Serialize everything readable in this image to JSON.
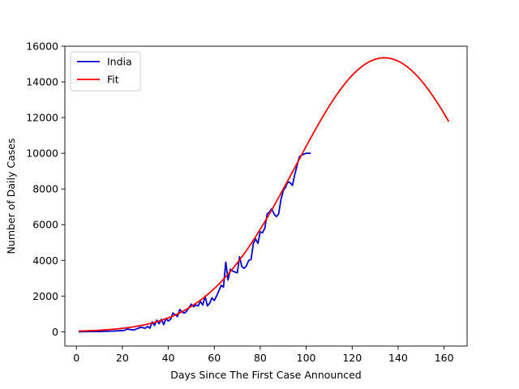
{
  "chart_data": {
    "type": "line",
    "title": "",
    "xlabel": "Days Since The First Case Announced",
    "ylabel": "Number of Daily Cases",
    "xlim": [
      -5,
      170
    ],
    "ylim": [
      -800,
      16000
    ],
    "xticks": [
      0,
      20,
      40,
      60,
      80,
      100,
      120,
      140,
      160
    ],
    "yticks": [
      0,
      2000,
      4000,
      6000,
      8000,
      10000,
      12000,
      14000,
      16000
    ],
    "grid": false,
    "legend_position": "top-left",
    "series": [
      {
        "name": "India",
        "color": "#0000cc",
        "x": [
          1,
          4,
          7,
          10,
          13,
          16,
          19,
          21,
          22,
          25,
          28,
          30,
          31,
          32,
          33,
          34,
          35,
          36,
          37,
          38,
          39,
          40,
          41,
          42,
          43,
          44,
          45,
          46,
          47,
          48,
          50,
          51,
          52,
          53,
          54,
          55,
          56,
          57,
          58,
          59,
          60,
          61,
          62,
          63,
          64,
          65,
          66,
          67,
          68,
          69,
          70,
          71,
          72,
          73,
          74,
          75,
          76,
          77,
          78,
          79,
          80,
          81,
          82,
          83,
          84,
          85,
          86,
          87,
          88,
          89,
          90,
          91,
          92,
          93,
          94,
          95,
          96,
          97,
          98,
          100,
          102
        ],
        "y": [
          0,
          5,
          20,
          15,
          30,
          40,
          60,
          80,
          150,
          100,
          250,
          200,
          300,
          200,
          550,
          350,
          650,
          450,
          700,
          400,
          750,
          600,
          700,
          1050,
          950,
          850,
          1250,
          1100,
          1050,
          1150,
          1550,
          1400,
          1500,
          1450,
          1700,
          1500,
          2000,
          1450,
          1600,
          1900,
          1750,
          2000,
          2300,
          2600,
          2500,
          3900,
          2900,
          3500,
          3400,
          3350,
          3300,
          4200,
          3650,
          3550,
          3700,
          4000,
          4050,
          4950,
          5200,
          4950,
          5600,
          5550,
          5800,
          6600,
          6700,
          6900,
          6600,
          6450,
          6600,
          7400,
          7900,
          8100,
          8400,
          8350,
          8200,
          8800,
          9300,
          9800,
          9900,
          10000,
          10000
        ]
      },
      {
        "name": "Fit",
        "color": "#ff0000",
        "model": "gaussian",
        "amplitude": 15350,
        "peak_day": 134,
        "sigma": 38.5,
        "x_range": [
          1,
          162
        ]
      }
    ]
  }
}
